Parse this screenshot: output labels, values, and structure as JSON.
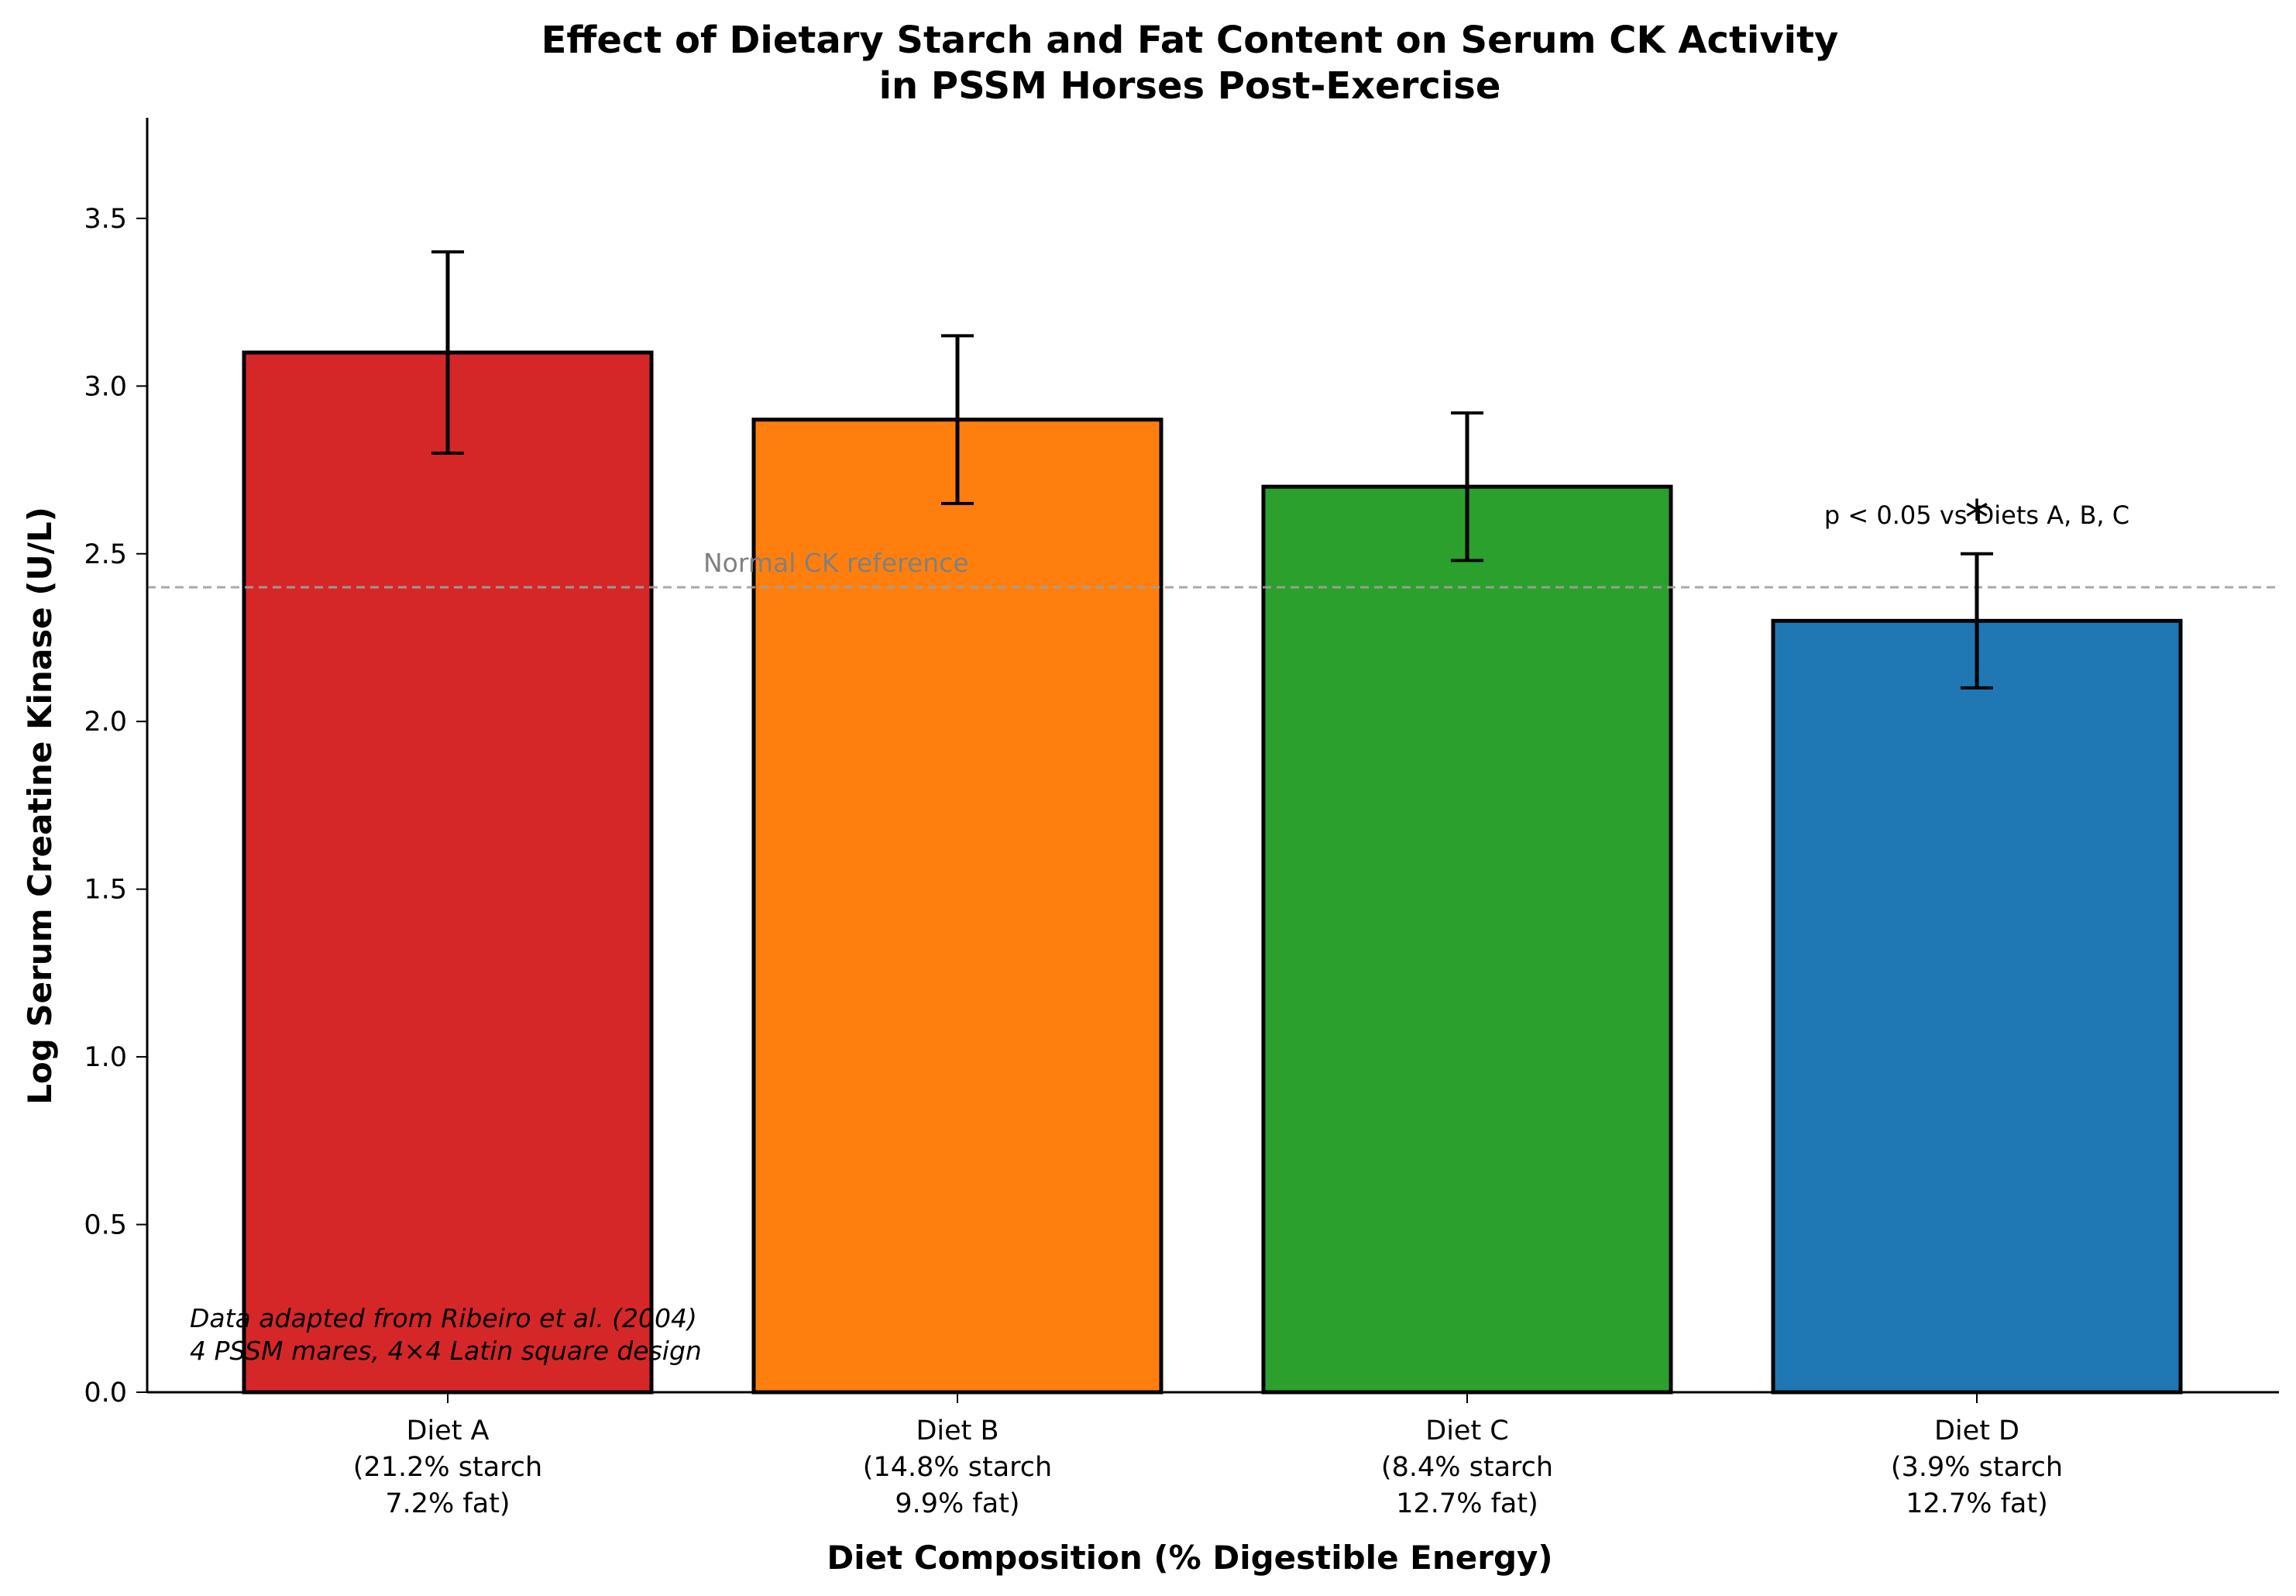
{
  "chart_data": {
    "type": "bar",
    "title": [
      "Effect of Dietary Starch and Fat Content on Serum CK Activity",
      "in PSSM Horses Post-Exercise"
    ],
    "xlabel": "Diet Composition (% Digestible Energy)",
    "ylabel": "Log Serum Creatine Kinase (U/L)",
    "ylim": [
      0,
      3.8
    ],
    "yticks": [
      0.0,
      0.5,
      1.0,
      1.5,
      2.0,
      2.5,
      3.0,
      3.5
    ],
    "ytick_labels": [
      "0.0",
      "0.5",
      "1.0",
      "1.5",
      "2.0",
      "2.5",
      "3.0",
      "3.5"
    ],
    "categories": [
      "Diet A",
      "Diet B",
      "Diet C",
      "Diet D"
    ],
    "category_labels": [
      [
        "Diet A",
        "(21.2% starch",
        "7.2% fat)"
      ],
      [
        "Diet B",
        "(14.8% starch",
        "9.9% fat)"
      ],
      [
        "Diet C",
        "(8.4% starch",
        "12.7% fat)"
      ],
      [
        "Diet D",
        "(3.9% starch",
        "12.7% fat)"
      ]
    ],
    "values": [
      3.1,
      2.9,
      2.7,
      2.3
    ],
    "errors": [
      0.3,
      0.25,
      0.22,
      0.2
    ],
    "colors": [
      "#d62728",
      "#ff7f0e",
      "#2ca02c",
      "#1f77b4"
    ],
    "reference_line": {
      "value": 2.4,
      "label": "Normal CK reference",
      "color": "#a0a0a0",
      "style": "dashed"
    },
    "significance": {
      "category": "Diet D",
      "marker": "*",
      "text": "p < 0.05 vs Diets A, B, C"
    },
    "footnote": [
      "Data adapted from Ribeiro et al. (2004)",
      "4 PSSM mares, 4×4 Latin square design"
    ],
    "grid": false,
    "legend": "none"
  }
}
